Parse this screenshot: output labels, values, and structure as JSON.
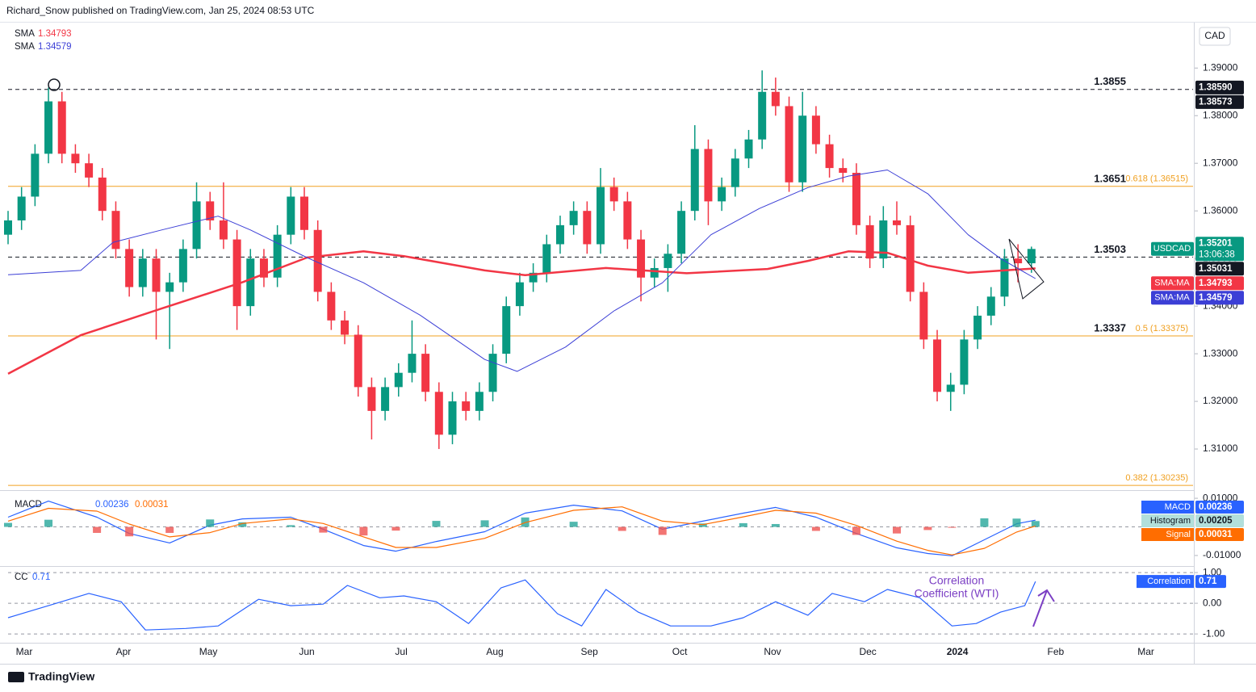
{
  "header": "Richard_Snow published on TradingView.com, Jan 25, 2024 08:53 UTC",
  "currency": "CAD",
  "footer": "TradingView",
  "chart_data": [
    {
      "type": "candlestick",
      "xlim": [
        0,
        88
      ],
      "ylim": [
        1.3017,
        1.3992
      ],
      "xticks": [
        {
          "value": 1.2,
          "label": "Mar"
        },
        {
          "value": 8.57,
          "label": "Apr"
        },
        {
          "value": 14.87,
          "label": "May"
        },
        {
          "value": 22.18,
          "label": "Jun"
        },
        {
          "value": 29.2,
          "label": "Jul"
        },
        {
          "value": 36.15,
          "label": "Aug"
        },
        {
          "value": 43.17,
          "label": "Sep"
        },
        {
          "value": 49.88,
          "label": "Oct"
        },
        {
          "value": 56.77,
          "label": "Nov"
        },
        {
          "value": 63.85,
          "label": "Dec"
        },
        {
          "value": 70.5,
          "label": "2024"
        },
        {
          "value": 77.8,
          "label": "Feb"
        },
        {
          "value": 84.5,
          "label": "Mar"
        }
      ],
      "yticks": [
        {
          "value": 1.39,
          "label": "1.39000"
        },
        {
          "value": 1.38,
          "label": "1.38000"
        },
        {
          "value": 1.37,
          "label": "1.37000"
        },
        {
          "value": 1.36,
          "label": "1.36000"
        },
        {
          "value": 1.35,
          "label": "1.35000"
        },
        {
          "value": 1.34,
          "label": "1.34000"
        },
        {
          "value": 1.33,
          "label": "1.33000"
        },
        {
          "value": 1.32,
          "label": "1.32000"
        },
        {
          "value": 1.31,
          "label": "1.31000"
        }
      ],
      "up_color": "#089981",
      "down_color": "#f23645",
      "candles": [
        [
          1.355,
          1.36,
          1.353,
          1.358
        ],
        [
          1.358,
          1.365,
          1.356,
          1.363
        ],
        [
          1.363,
          1.374,
          1.361,
          1.372
        ],
        [
          1.372,
          1.3859,
          1.37,
          1.383
        ],
        [
          1.383,
          1.385,
          1.37,
          1.372
        ],
        [
          1.372,
          1.374,
          1.368,
          1.37
        ],
        [
          1.37,
          1.372,
          1.365,
          1.367
        ],
        [
          1.367,
          1.369,
          1.358,
          1.36
        ],
        [
          1.36,
          1.362,
          1.35,
          1.352
        ],
        [
          1.352,
          1.354,
          1.342,
          1.344
        ],
        [
          1.344,
          1.352,
          1.342,
          1.35
        ],
        [
          1.35,
          1.352,
          1.333,
          1.343
        ],
        [
          1.343,
          1.347,
          1.331,
          1.345
        ],
        [
          1.345,
          1.354,
          1.343,
          1.352
        ],
        [
          1.352,
          1.366,
          1.35,
          1.362
        ],
        [
          1.362,
          1.364,
          1.356,
          1.358
        ],
        [
          1.358,
          1.366,
          1.352,
          1.354
        ],
        [
          1.354,
          1.356,
          1.335,
          1.34
        ],
        [
          1.34,
          1.352,
          1.338,
          1.35
        ],
        [
          1.35,
          1.352,
          1.344,
          1.346
        ],
        [
          1.346,
          1.357,
          1.344,
          1.355
        ],
        [
          1.355,
          1.365,
          1.353,
          1.363
        ],
        [
          1.363,
          1.365,
          1.354,
          1.356
        ],
        [
          1.356,
          1.358,
          1.341,
          1.343
        ],
        [
          1.343,
          1.345,
          1.335,
          1.337
        ],
        [
          1.337,
          1.339,
          1.332,
          1.334
        ],
        [
          1.334,
          1.336,
          1.321,
          1.323
        ],
        [
          1.323,
          1.325,
          1.312,
          1.318
        ],
        [
          1.318,
          1.325,
          1.316,
          1.323
        ],
        [
          1.323,
          1.328,
          1.321,
          1.326
        ],
        [
          1.326,
          1.337,
          1.324,
          1.33
        ],
        [
          1.33,
          1.332,
          1.32,
          1.322
        ],
        [
          1.322,
          1.324,
          1.31,
          1.313
        ],
        [
          1.313,
          1.322,
          1.311,
          1.32
        ],
        [
          1.32,
          1.322,
          1.316,
          1.318
        ],
        [
          1.318,
          1.324,
          1.316,
          1.322
        ],
        [
          1.322,
          1.332,
          1.32,
          1.33
        ],
        [
          1.33,
          1.342,
          1.328,
          1.34
        ],
        [
          1.34,
          1.347,
          1.338,
          1.345
        ],
        [
          1.345,
          1.349,
          1.343,
          1.347
        ],
        [
          1.347,
          1.355,
          1.345,
          1.353
        ],
        [
          1.353,
          1.359,
          1.351,
          1.357
        ],
        [
          1.357,
          1.362,
          1.355,
          1.36
        ],
        [
          1.36,
          1.362,
          1.351,
          1.353
        ],
        [
          1.353,
          1.369,
          1.351,
          1.365
        ],
        [
          1.365,
          1.367,
          1.36,
          1.362
        ],
        [
          1.362,
          1.364,
          1.352,
          1.354
        ],
        [
          1.354,
          1.356,
          1.341,
          1.346
        ],
        [
          1.346,
          1.35,
          1.344,
          1.348
        ],
        [
          1.348,
          1.353,
          1.343,
          1.351
        ],
        [
          1.351,
          1.362,
          1.349,
          1.36
        ],
        [
          1.36,
          1.378,
          1.358,
          1.373
        ],
        [
          1.373,
          1.375,
          1.357,
          1.362
        ],
        [
          1.362,
          1.367,
          1.36,
          1.365
        ],
        [
          1.365,
          1.373,
          1.363,
          1.371
        ],
        [
          1.371,
          1.377,
          1.369,
          1.375
        ],
        [
          1.375,
          1.3895,
          1.373,
          1.385
        ],
        [
          1.385,
          1.388,
          1.38,
          1.382
        ],
        [
          1.382,
          1.384,
          1.364,
          1.366
        ],
        [
          1.366,
          1.385,
          1.364,
          1.38
        ],
        [
          1.38,
          1.382,
          1.372,
          1.374
        ],
        [
          1.374,
          1.376,
          1.367,
          1.369
        ],
        [
          1.369,
          1.371,
          1.366,
          1.368
        ],
        [
          1.368,
          1.37,
          1.355,
          1.357
        ],
        [
          1.357,
          1.359,
          1.348,
          1.35
        ],
        [
          1.35,
          1.361,
          1.348,
          1.358
        ],
        [
          1.358,
          1.362,
          1.355,
          1.357
        ],
        [
          1.357,
          1.359,
          1.341,
          1.343
        ],
        [
          1.343,
          1.345,
          1.331,
          1.333
        ],
        [
          1.333,
          1.335,
          1.32,
          1.322
        ],
        [
          1.322,
          1.326,
          1.318,
          1.3235
        ],
        [
          1.3235,
          1.335,
          1.3215,
          1.333
        ],
        [
          1.333,
          1.34,
          1.331,
          1.338
        ],
        [
          1.338,
          1.344,
          1.336,
          1.342
        ],
        [
          1.342,
          1.352,
          1.34,
          1.35
        ],
        [
          1.35,
          1.353,
          1.345,
          1.349
        ],
        [
          1.349,
          1.3525,
          1.347,
          1.35201
        ]
      ],
      "series": [
        {
          "name": "SMA",
          "color": "#f23645",
          "width": 2.5,
          "last": "1.34793",
          "x": [
            0,
            5.4,
            11.4,
            17.4,
            22.2,
            26.4,
            29.4,
            35.4,
            38.4,
            44.4,
            50.4,
            56.4,
            59.4,
            62.4,
            65.3,
            68.3,
            71.3,
            76.3
          ],
          "values": [
            1.3258,
            1.3339,
            1.3395,
            1.345,
            1.3502,
            1.3515,
            1.3505,
            1.3475,
            1.3465,
            1.348,
            1.3469,
            1.3478,
            1.3495,
            1.3515,
            1.3512,
            1.3485,
            1.347,
            1.34793
          ]
        },
        {
          "name": "SMA",
          "color": "#3c3fd6",
          "width": 1,
          "last": "1.34579",
          "x": [
            0,
            5.4,
            7.8,
            11.4,
            15.6,
            18,
            22.2,
            26.4,
            30.6,
            35.4,
            37.8,
            41.4,
            45,
            48.6,
            52.2,
            55.8,
            59.4,
            62.4,
            65.3,
            68.3,
            71.3,
            73.7,
            76.3
          ],
          "values": [
            1.3466,
            1.3475,
            1.3534,
            1.356,
            1.3589,
            1.356,
            1.3502,
            1.3449,
            1.3381,
            1.3288,
            1.3263,
            1.3314,
            1.339,
            1.3449,
            1.355,
            1.3605,
            1.3649,
            1.3673,
            1.3686,
            1.3636,
            1.355,
            1.35,
            1.34579
          ]
        }
      ],
      "levels": [
        {
          "value": 1.3855,
          "label": "1.3855",
          "line": "dashed"
        },
        {
          "value": 1.3651,
          "label": "1.3651",
          "line": "none"
        },
        {
          "value": 1.3503,
          "label": "1.3503",
          "line": "dashed"
        },
        {
          "value": 1.3337,
          "label": "1.3337",
          "line": "none"
        }
      ],
      "fib_color": "#f0a020",
      "fibs": [
        {
          "value": 1.36515,
          "label": "0.618 (1.36515)"
        },
        {
          "value": 1.33375,
          "label": "0.5 (1.33375)"
        },
        {
          "value": 1.30235,
          "label": "0.382 (1.30235)"
        }
      ],
      "price_labels": [
        {
          "value": 1.3859,
          "label": "1.38590",
          "color": "#131722"
        },
        {
          "value": 1.38573,
          "label": "1.38573",
          "color": "#131722"
        },
        {
          "name": "USDCAD",
          "value": 1.35201,
          "label": "1.35201",
          "countdown": "13:06:38",
          "color": "#089981"
        },
        {
          "value": 1.35031,
          "label": "1.35031",
          "color": "#131722"
        },
        {
          "name": "SMA:MA",
          "value": 1.34793,
          "label": "1.34793",
          "color": "#f23645"
        },
        {
          "name": "SMA:MA",
          "value": 1.34579,
          "label": "1.34579",
          "color": "#3c3fd6"
        }
      ]
    },
    {
      "type": "macd",
      "title": "MACD",
      "xlim": [
        0,
        88
      ],
      "ylim": [
        -0.0134,
        0.012
      ],
      "yticks": [
        {
          "value": 0.01,
          "label": "0.01000"
        },
        {
          "value": -0.01,
          "label": "-0.01000"
        }
      ],
      "x": [
        0,
        3,
        6.6,
        9,
        12,
        15,
        17.4,
        21,
        23.4,
        26.4,
        28.8,
        31.8,
        35.4,
        38.4,
        42,
        45.6,
        48.6,
        51.6,
        54.6,
        57,
        60,
        63,
        66,
        68.3,
        70.1,
        72.5,
        74.9,
        76.3
      ],
      "series": [
        {
          "name": "MACD",
          "kind": "line",
          "color": "#2962ff",
          "badge": "#2962ff",
          "last": "0.00236",
          "values": [
            0.0034,
            0.009,
            0.0034,
            -0.0023,
            -0.0056,
            0.0006,
            0.0028,
            0.0034,
            -0.0008,
            -0.0065,
            -0.0085,
            -0.0051,
            -0.0017,
            0.0048,
            0.0076,
            0.0056,
            -0.0008,
            0.002,
            0.0048,
            0.0068,
            0.0034,
            -0.0023,
            -0.0073,
            -0.0093,
            -0.0101,
            -0.0045,
            0.0011,
            0.00236
          ]
        },
        {
          "name": "Histogram",
          "kind": "bar",
          "color_up": "#26a69a",
          "color_down": "#ef5350",
          "badge": "#b2dfdb",
          "last": "0.00205",
          "values": [
            0.0014,
            0.0025,
            -0.0021,
            -0.0033,
            -0.0021,
            0.0026,
            0.0016,
            0.0006,
            -0.002,
            -0.003,
            -0.0013,
            0.0021,
            0.0023,
            0.0033,
            0.0018,
            -0.0014,
            -0.0028,
            0.0012,
            0.0013,
            0.001,
            -0.0014,
            -0.0028,
            -0.0023,
            -0.0011,
            -0.0003,
            0.003,
            0.0029,
            0.00205
          ]
        },
        {
          "name": "Signal",
          "kind": "line",
          "color": "#ff6d00",
          "badge": "#ff6d00",
          "last": "0.00031",
          "values": [
            0.002,
            0.0065,
            0.0055,
            0.001,
            -0.0035,
            -0.002,
            0.0012,
            0.0028,
            0.0012,
            -0.0035,
            -0.0072,
            -0.0072,
            -0.004,
            0.0015,
            0.0058,
            0.007,
            0.002,
            0.0008,
            0.0035,
            0.0058,
            0.0048,
            0.0005,
            -0.005,
            -0.0082,
            -0.0098,
            -0.0075,
            -0.0018,
            0.00031
          ]
        }
      ]
    },
    {
      "type": "line",
      "title": "CC",
      "xlim": [
        0,
        88
      ],
      "ylim": [
        -1.26,
        1.16
      ],
      "yticks": [
        {
          "value": 1,
          "label": "1.00"
        },
        {
          "value": 0,
          "label": "0.00"
        },
        {
          "value": -1,
          "label": "-1.00"
        }
      ],
      "x": [
        0,
        3,
        6,
        8.4,
        10.2,
        13.2,
        15.6,
        18.6,
        21,
        23.4,
        25.2,
        27.6,
        29.4,
        31.8,
        34.2,
        36.6,
        38.4,
        40.8,
        42.6,
        44.4,
        46.8,
        49.2,
        52.2,
        54.6,
        57,
        59.4,
        61.2,
        63.6,
        65.3,
        67.7,
        70.1,
        71.9,
        73.7,
        75.5,
        76.3
      ],
      "series": [
        {
          "name": "Correlation",
          "color": "#2962ff",
          "last": "0.71",
          "values": [
            -0.47,
            -0.08,
            0.32,
            0.05,
            -0.87,
            -0.82,
            -0.74,
            0.13,
            -0.08,
            -0.03,
            0.58,
            0.18,
            0.24,
            0.05,
            -0.66,
            0.5,
            0.76,
            -0.34,
            -0.74,
            0.45,
            -0.29,
            -0.74,
            -0.74,
            -0.47,
            0.05,
            -0.39,
            0.32,
            0.05,
            0.45,
            0.18,
            -0.74,
            -0.66,
            -0.29,
            -0.08,
            0.71
          ]
        }
      ],
      "annotation": [
        "Correlation",
        "Coefficient (WTI)"
      ],
      "annotation_color": "#7b3fc4"
    }
  ]
}
